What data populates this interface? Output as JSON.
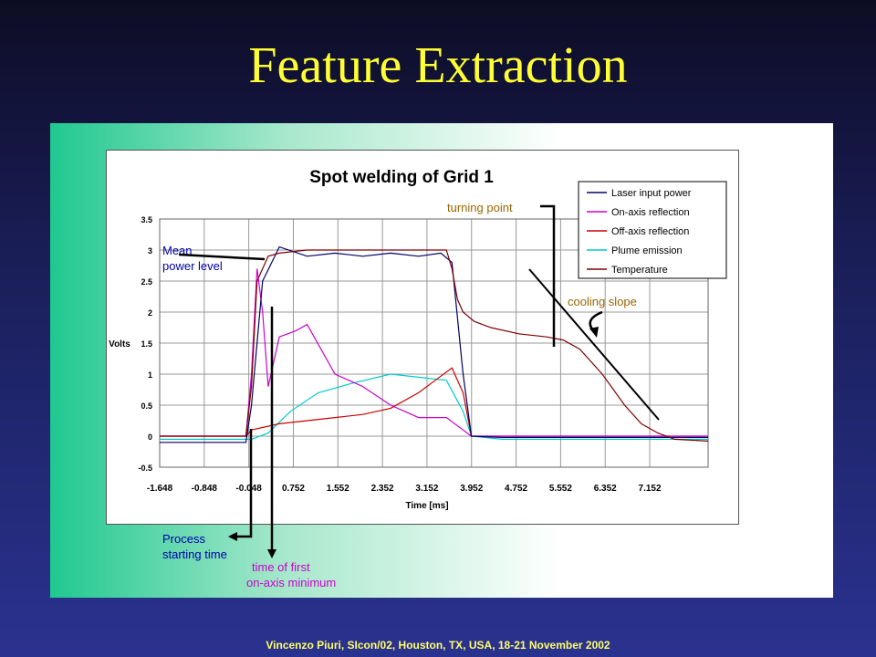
{
  "slide": {
    "title": "Feature Extraction",
    "footer": "Vincenzo Piuri, SIcon/02, Houston, TX, USA, 18-21 November 2002"
  },
  "annotations": {
    "mean_power": [
      "Mean",
      "power level"
    ],
    "process_start": [
      "Process",
      "starting time"
    ],
    "first_min": [
      "time of first",
      "on-axis minimum"
    ],
    "turning_point": "turning point",
    "cooling_slope": "cooling slope"
  },
  "colors": {
    "laser": "#000066",
    "onaxis": "#cc00cc",
    "offaxis": "#cc0000",
    "plume": "#00cccc",
    "temperature": "#800000",
    "title_yellow": "#ffff33",
    "annotation_blue": "#0000aa",
    "annotation_magenta": "#cc00cc",
    "annotation_brown": "#996600"
  },
  "chart_data": {
    "type": "line",
    "title": "Spot welding of Grid 1",
    "xlabel": "Time [ms]",
    "ylabel": "Volts",
    "xlim": [
      -1.648,
      8.2
    ],
    "ylim": [
      -0.5,
      3.5
    ],
    "x_ticks": [
      "-1.648",
      "-0.848",
      "-0.048",
      "0.752",
      "1.552",
      "2.352",
      "3.152",
      "3.952",
      "4.752",
      "5.552",
      "6.352",
      "7.152"
    ],
    "y_ticks": [
      "-0.5",
      "0",
      "0.5",
      "1",
      "1.5",
      "2",
      "2.5",
      "3",
      "3.5"
    ],
    "grid": true,
    "legend_position": "top-right",
    "series": [
      {
        "name": "Laser input power",
        "x": [
          -1.648,
          -0.1,
          0.0,
          0.2,
          0.5,
          1.0,
          1.5,
          2.0,
          2.5,
          3.0,
          3.4,
          3.6,
          3.8,
          3.95,
          4.5,
          8.2
        ],
        "y": [
          -0.1,
          -0.1,
          0.5,
          2.5,
          3.05,
          2.9,
          2.95,
          2.9,
          2.95,
          2.9,
          2.95,
          2.8,
          1.0,
          0.0,
          -0.02,
          -0.02
        ]
      },
      {
        "name": "On-axis reflection",
        "x": [
          -1.648,
          -0.1,
          0.0,
          0.1,
          0.2,
          0.3,
          0.5,
          0.8,
          1.0,
          1.5,
          2.0,
          2.5,
          3.0,
          3.5,
          3.8,
          3.95,
          4.5,
          8.2
        ],
        "y": [
          0.0,
          0.0,
          1.0,
          2.7,
          2.0,
          0.8,
          1.6,
          1.7,
          1.8,
          1.0,
          0.8,
          0.5,
          0.3,
          0.3,
          0.1,
          0.0,
          0.0,
          0.0
        ]
      },
      {
        "name": "Off-axis reflection",
        "x": [
          -1.648,
          -0.1,
          0.0,
          0.5,
          1.0,
          1.5,
          2.0,
          2.5,
          3.0,
          3.3,
          3.6,
          3.8,
          3.95,
          4.5,
          8.2
        ],
        "y": [
          0.0,
          0.0,
          0.1,
          0.2,
          0.25,
          0.3,
          0.35,
          0.45,
          0.7,
          0.9,
          1.1,
          0.7,
          0.0,
          0.0,
          0.0
        ]
      },
      {
        "name": "Plume emission",
        "x": [
          -1.648,
          0.0,
          0.3,
          0.7,
          1.2,
          1.8,
          2.5,
          3.0,
          3.5,
          3.8,
          3.95,
          4.5,
          8.2
        ],
        "y": [
          -0.05,
          -0.05,
          0.05,
          0.4,
          0.7,
          0.85,
          1.0,
          0.95,
          0.9,
          0.4,
          0.0,
          -0.05,
          -0.05
        ]
      },
      {
        "name": "Temperature",
        "x": [
          -1.648,
          -0.1,
          0.0,
          0.1,
          0.3,
          0.5,
          1.0,
          2.0,
          3.0,
          3.5,
          3.6,
          3.7,
          3.8,
          4.0,
          4.3,
          4.8,
          5.3,
          5.6,
          5.9,
          6.3,
          6.7,
          7.0,
          7.3,
          7.6,
          8.2
        ],
        "y": [
          0.0,
          0.0,
          0.8,
          2.5,
          2.9,
          2.95,
          3.0,
          3.0,
          3.0,
          3.0,
          2.7,
          2.2,
          2.0,
          1.85,
          1.75,
          1.65,
          1.6,
          1.55,
          1.4,
          1.0,
          0.5,
          0.2,
          0.05,
          -0.05,
          -0.08
        ]
      }
    ]
  }
}
